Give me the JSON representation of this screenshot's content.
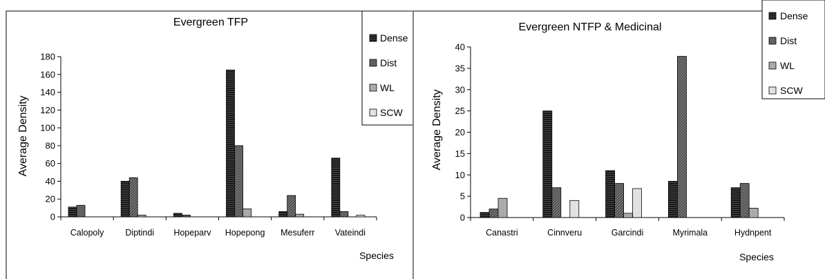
{
  "chart_data": [
    {
      "type": "bar",
      "title": "Evergreen TFP",
      "xlabel": "Species",
      "ylabel": "Average Density",
      "ylim": [
        0,
        180
      ],
      "yticks": [
        0,
        20,
        40,
        60,
        80,
        100,
        120,
        140,
        160,
        180
      ],
      "grid": false,
      "legend_position": "top-right",
      "categories": [
        "Calopoly",
        "Diptindi",
        "Hopeparv",
        "Hopepong",
        "Mesuferr",
        "Vateindi"
      ],
      "series": [
        {
          "name": "Dense",
          "pattern": "dense",
          "values": [
            11,
            40,
            4,
            165,
            6,
            66
          ]
        },
        {
          "name": "Dist",
          "pattern": "dist",
          "values": [
            13,
            44,
            2,
            80,
            24,
            6
          ]
        },
        {
          "name": "WL",
          "pattern": "wl",
          "values": [
            0,
            2,
            0,
            9,
            3,
            0
          ]
        },
        {
          "name": "SCW",
          "pattern": "scw",
          "values": [
            0,
            0,
            0,
            0,
            0,
            2
          ]
        }
      ]
    },
    {
      "type": "bar",
      "title": "Evergreen NTFP & Medicinal",
      "xlabel": "Species",
      "ylabel": "Average Density",
      "ylim": [
        0,
        40
      ],
      "yticks": [
        0,
        5,
        10,
        15,
        20,
        25,
        30,
        35,
        40
      ],
      "grid": false,
      "legend_position": "top-right",
      "categories": [
        "Canastri",
        "Cinnveru",
        "Garcindi",
        "Myrimala",
        "Hydnpent"
      ],
      "series": [
        {
          "name": "Dense",
          "pattern": "dense",
          "values": [
            1.2,
            25,
            11,
            8.5,
            7
          ]
        },
        {
          "name": "Dist",
          "pattern": "dist",
          "values": [
            2,
            7,
            8,
            37.8,
            8
          ]
        },
        {
          "name": "WL",
          "pattern": "wl",
          "values": [
            4.5,
            0,
            1,
            0,
            2.2
          ]
        },
        {
          "name": "SCW",
          "pattern": "scw",
          "values": [
            0,
            4,
            6.8,
            0,
            0
          ]
        }
      ]
    }
  ]
}
